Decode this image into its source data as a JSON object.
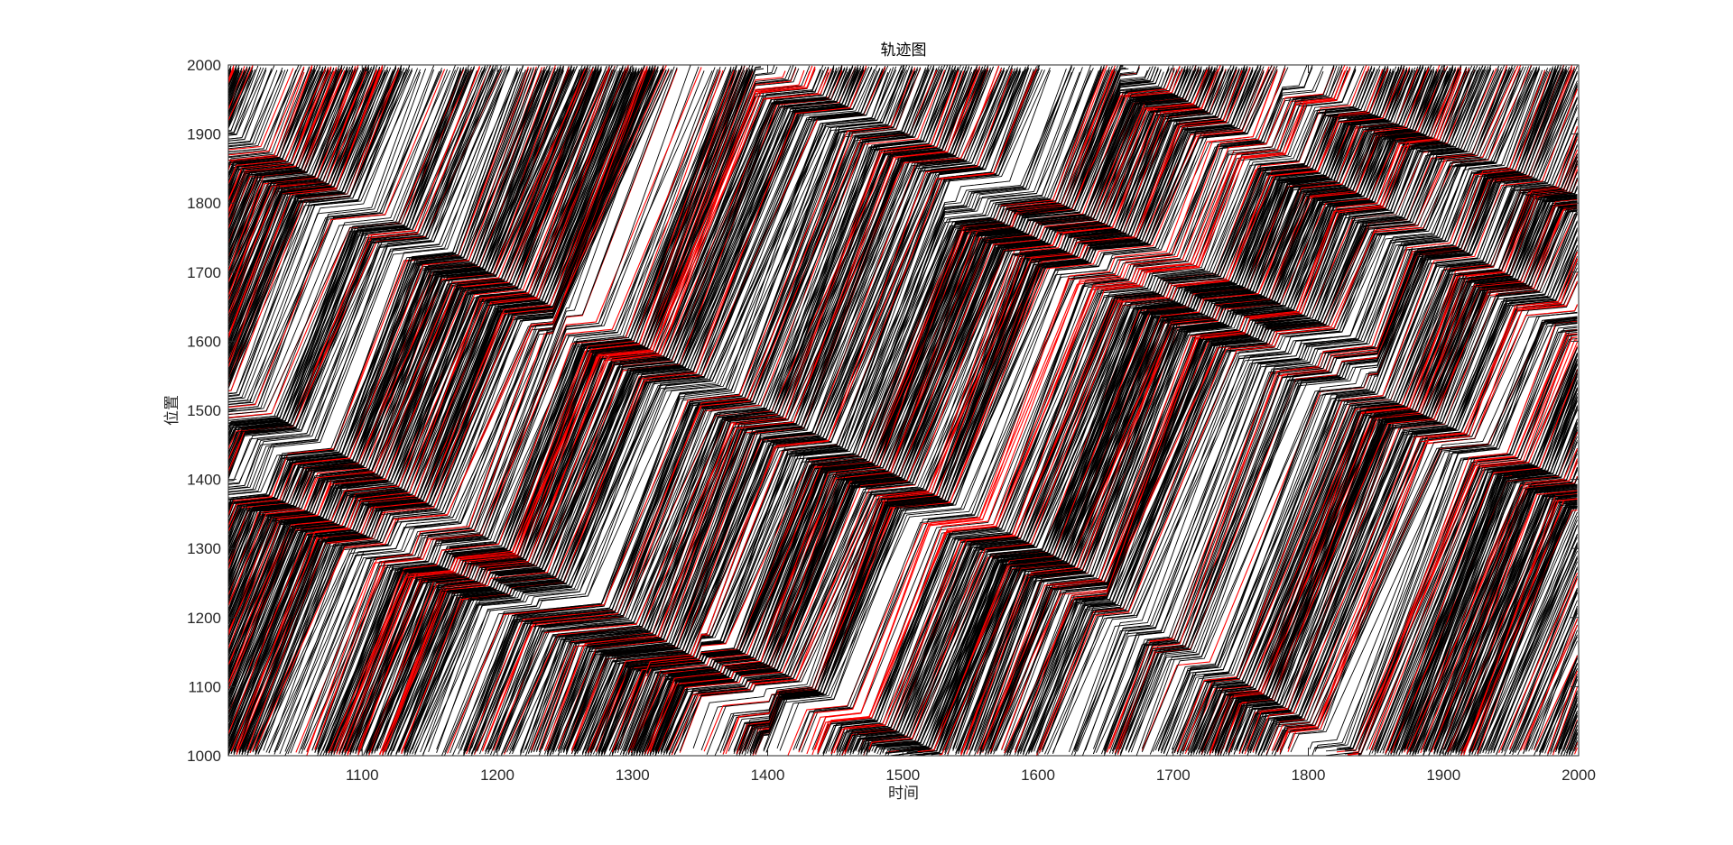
{
  "chart_data": {
    "type": "line",
    "title": "轨迹图",
    "xlabel": "时间",
    "ylabel": "位置",
    "xlim": [
      1001,
      2000
    ],
    "ylim": [
      1000,
      2000
    ],
    "xticks": [
      1100,
      1200,
      1300,
      1400,
      1500,
      1600,
      1700,
      1800,
      1900,
      2000
    ],
    "yticks": [
      1000,
      1100,
      1200,
      1300,
      1400,
      1500,
      1600,
      1700,
      1800,
      1900,
      2000
    ],
    "grid": false,
    "legend": "none",
    "series": [
      {
        "color": "#000000",
        "description": "many vehicle trajectories; position increases with time and wraps around",
        "free_flow_speed": 5,
        "jam_waves": [
          {
            "start": [
              1001,
              1905
            ],
            "end": [
              1240,
              1650
            ],
            "width": 50
          },
          {
            "start": [
              1250,
              1650
            ],
            "end": [
              1650,
              1250
            ],
            "width": 50
          },
          {
            "start": [
              1001,
              1530
            ],
            "end": [
              1400,
              1080
            ],
            "width": 55
          },
          {
            "start": [
              1001,
              1400
            ],
            "end": [
              1310,
              1150
            ],
            "width": 35
          },
          {
            "start": [
              1390,
              2000
            ],
            "end": [
              1850,
              1590
            ],
            "width": 45
          },
          {
            "start": [
              1530,
              1810
            ],
            "end": [
              2000,
              1390
            ],
            "width": 40
          },
          {
            "start": [
              1660,
              2000
            ],
            "end": [
              2000,
              1640
            ],
            "width": 45
          },
          {
            "start": [
              1350,
              1180
            ],
            "end": [
              1530,
              1000
            ],
            "width": 40
          },
          {
            "start": [
              1590,
              1300
            ],
            "end": [
              1840,
              1000
            ],
            "width": 35
          },
          {
            "start": [
              1780,
              1980
            ],
            "end": [
              2000,
              1810
            ],
            "width": 30
          }
        ]
      },
      {
        "color": "#ff0000",
        "description": "highlighted vehicle trajectories drawn in red"
      }
    ]
  }
}
